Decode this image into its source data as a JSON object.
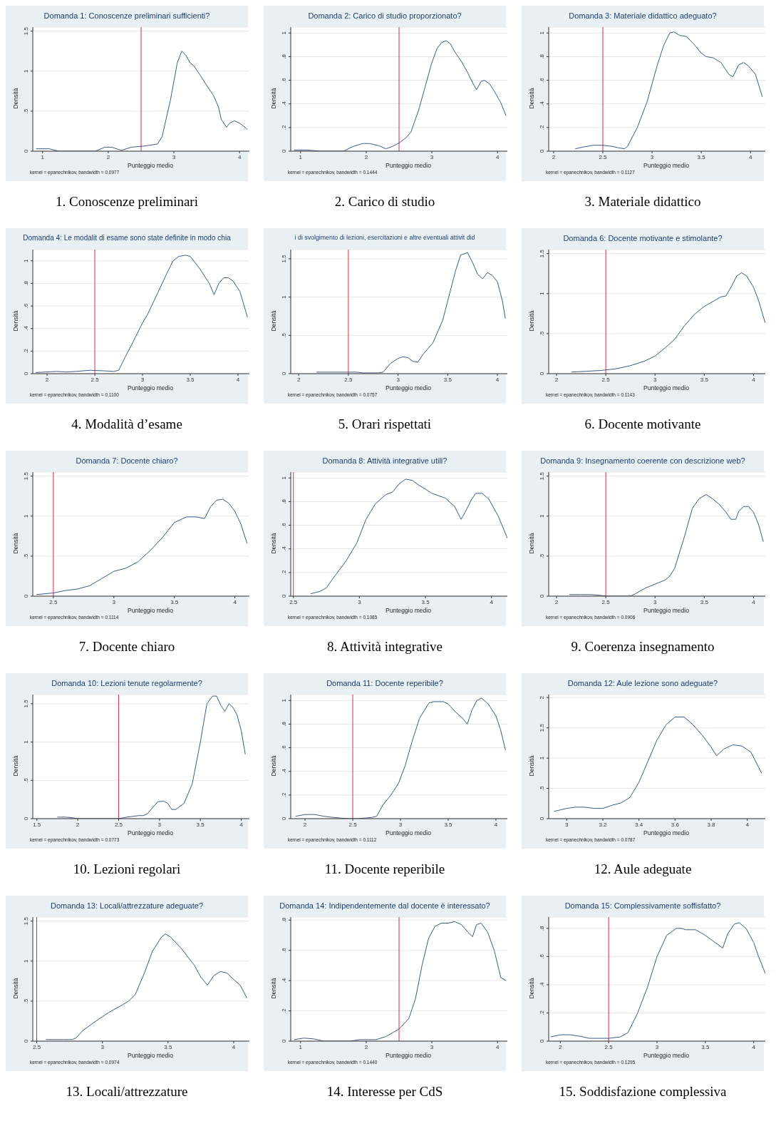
{
  "chart_data": [
    {
      "type": "line",
      "title": "Domanda 1: Conoscenze preliminari sufficienti?",
      "xlabel": "Punteggio medio",
      "ylabel": "Densità",
      "x": [
        0.9,
        1.1,
        1.25,
        1.8,
        1.95,
        2.05,
        2.2,
        2.35,
        2.5,
        2.6,
        2.75,
        2.82,
        2.95,
        3.05,
        3.12,
        3.18,
        3.25,
        3.3,
        3.4,
        3.5,
        3.6,
        3.68,
        3.72,
        3.8,
        3.85,
        3.92,
        4.0,
        4.05,
        4.12
      ],
      "series": [
        {
          "color": "#3b5b82",
          "values": [
            0.03,
            0.03,
            0,
            0,
            0.05,
            0.05,
            0.01,
            0.05,
            0.06,
            0.07,
            0.09,
            0.18,
            0.65,
            1.1,
            1.25,
            1.2,
            1.1,
            1.07,
            0.95,
            0.82,
            0.7,
            0.55,
            0.4,
            0.3,
            0.35,
            0.38,
            0.35,
            0.32,
            0.27
          ]
        }
      ],
      "xlim": [
        0.85,
        4.15
      ],
      "xticks": [
        1,
        2,
        3,
        4
      ],
      "ylim": [
        0,
        1.55
      ],
      "yticks": [
        0,
        {
          "value": 0.5,
          "label": ".5"
        },
        1,
        1.5
      ],
      "grid": "y",
      "ref_lines": [
        {
          "axis": "x",
          "value": 2.5,
          "color": "#e0264e"
        }
      ],
      "annotations": [
        "kernel = epanechnikov, bandwidth = 0.0977",
        "1. Conoscenze preliminari"
      ]
    },
    {
      "type": "line",
      "title": "Domanda 2: Carico di studio proporzionato?",
      "xlabel": "Punteggio medio",
      "ylabel": "Densità",
      "x": [
        0.9,
        1.1,
        1.3,
        1.65,
        1.8,
        1.95,
        2.05,
        2.2,
        2.3,
        2.4,
        2.5,
        2.6,
        2.68,
        2.8,
        2.9,
        3.0,
        3.08,
        3.15,
        3.22,
        3.28,
        3.35,
        3.45,
        3.55,
        3.62,
        3.68,
        3.75,
        3.8,
        3.88,
        3.95,
        4.05,
        4.13
      ],
      "series": [
        {
          "color": "#3b5b82",
          "values": [
            0.01,
            0.01,
            0,
            0,
            0.04,
            0.065,
            0.065,
            0.045,
            0.02,
            0.04,
            0.07,
            0.11,
            0.16,
            0.35,
            0.55,
            0.75,
            0.87,
            0.92,
            0.935,
            0.91,
            0.84,
            0.76,
            0.66,
            0.58,
            0.52,
            0.59,
            0.6,
            0.57,
            0.51,
            0.41,
            0.3
          ]
        }
      ],
      "xlim": [
        0.85,
        4.15
      ],
      "xticks": [
        1,
        2,
        3,
        4
      ],
      "ylim": [
        0,
        1.05
      ],
      "yticks": [
        0,
        {
          "value": 0.2,
          "label": ".2"
        },
        {
          "value": 0.4,
          "label": ".4"
        },
        {
          "value": 0.6,
          "label": ".6"
        },
        {
          "value": 0.8,
          "label": ".8"
        },
        1
      ],
      "grid": "y",
      "ref_lines": [
        {
          "axis": "x",
          "value": 2.5,
          "color": "#e0264e"
        }
      ],
      "annotations": [
        "kernel = epanechnikov, bandwidth = 0.1444",
        "2. Carico di studio"
      ]
    },
    {
      "type": "line",
      "title": "Domanda 3: Materiale didattico adeguato?",
      "xlabel": "Punteggio medio",
      "ylabel": "Densità",
      "x": [
        2.22,
        2.3,
        2.4,
        2.5,
        2.6,
        2.65,
        2.72,
        2.75,
        2.85,
        2.95,
        3.05,
        3.12,
        3.18,
        3.22,
        3.28,
        3.35,
        3.42,
        3.5,
        3.55,
        3.62,
        3.7,
        3.78,
        3.82,
        3.88,
        3.93,
        3.98,
        4.05,
        4.12
      ],
      "series": [
        {
          "color": "#3b5b82",
          "values": [
            0.02,
            0.035,
            0.05,
            0.05,
            0.04,
            0.03,
            0.02,
            0.04,
            0.2,
            0.42,
            0.72,
            0.9,
            1.0,
            1.01,
            0.98,
            0.97,
            0.91,
            0.83,
            0.8,
            0.79,
            0.75,
            0.65,
            0.63,
            0.73,
            0.75,
            0.72,
            0.65,
            0.46
          ]
        }
      ],
      "xlim": [
        1.95,
        4.15
      ],
      "xticks": [
        2,
        2.5,
        3,
        3.5,
        4
      ],
      "ylim": [
        0,
        1.05
      ],
      "yticks": [
        0,
        {
          "value": 0.2,
          "label": ".2"
        },
        {
          "value": 0.4,
          "label": ".4"
        },
        {
          "value": 0.6,
          "label": ".6"
        },
        {
          "value": 0.8,
          "label": ".8"
        },
        1
      ],
      "grid": "y",
      "ref_lines": [
        {
          "axis": "x",
          "value": 2.5,
          "color": "#e0264e"
        }
      ],
      "annotations": [
        "kernel = epanechnikov, bandwidth = 0.1127",
        "3. Materiale didattico"
      ]
    },
    {
      "type": "line",
      "title": "Domanda 4: Le modalit di esame sono state definite in modo chia",
      "xlabel": "Punteggio medio",
      "ylabel": "Densità",
      "x": [
        1.88,
        2.0,
        2.1,
        2.2,
        2.3,
        2.45,
        2.6,
        2.7,
        2.75,
        2.82,
        2.9,
        3.0,
        3.05,
        3.15,
        3.25,
        3.32,
        3.38,
        3.45,
        3.5,
        3.6,
        3.7,
        3.75,
        3.8,
        3.85,
        3.9,
        3.95,
        4.02,
        4.1
      ],
      "series": [
        {
          "color": "#3b5b82",
          "values": [
            0.01,
            0.015,
            0.02,
            0.015,
            0.02,
            0.03,
            0.025,
            0.02,
            0.03,
            0.15,
            0.28,
            0.45,
            0.52,
            0.7,
            0.88,
            1.0,
            1.04,
            1.05,
            1.04,
            0.93,
            0.8,
            0.7,
            0.8,
            0.85,
            0.85,
            0.82,
            0.73,
            0.5
          ]
        }
      ],
      "xlim": [
        1.85,
        4.12
      ],
      "xticks": [
        2,
        2.5,
        3,
        3.5,
        4
      ],
      "ylim": [
        0,
        1.1
      ],
      "yticks": [
        0,
        {
          "value": 0.2,
          "label": ".2"
        },
        {
          "value": 0.4,
          "label": ".4"
        },
        {
          "value": 0.6,
          "label": ".6"
        },
        {
          "value": 0.8,
          "label": ".8"
        },
        1
      ],
      "grid": "y",
      "ref_lines": [
        {
          "axis": "x",
          "value": 2.5,
          "color": "#e0264e"
        }
      ],
      "annotations": [
        "kernel = epanechnikov, bandwidth = 0.1100",
        "4. Modalità d’esame"
      ]
    },
    {
      "type": "line",
      "title": "i di svolgimento di lezioni, esercitazioni e altre eventuali attivit did",
      "xlabel": "Punteggio medio",
      "ylabel": "Densità",
      "x": [
        2.18,
        2.5,
        2.58,
        2.65,
        2.8,
        2.85,
        2.92,
        3.0,
        3.05,
        3.1,
        3.15,
        3.2,
        3.25,
        3.35,
        3.45,
        3.52,
        3.58,
        3.63,
        3.7,
        3.75,
        3.8,
        3.85,
        3.9,
        3.95,
        4.0,
        4.05,
        4.08
      ],
      "series": [
        {
          "color": "#3b5b82",
          "values": [
            0.02,
            0.02,
            0.02,
            0.01,
            0.01,
            0.02,
            0.13,
            0.2,
            0.22,
            0.21,
            0.16,
            0.15,
            0.25,
            0.4,
            0.7,
            1.05,
            1.35,
            1.55,
            1.58,
            1.45,
            1.3,
            1.24,
            1.32,
            1.28,
            1.2,
            0.95,
            0.72
          ]
        }
      ],
      "xlim": [
        1.92,
        4.1
      ],
      "xticks": [
        2,
        2.5,
        3,
        3.5,
        4
      ],
      "ylim": [
        0,
        1.62
      ],
      "yticks": [
        0,
        {
          "value": 0.5,
          "label": ".5"
        },
        1,
        1.5
      ],
      "grid": "y",
      "ref_lines": [
        {
          "axis": "x",
          "value": 2.5,
          "color": "#e0264e"
        }
      ],
      "annotations": [
        "kernel = epanechnikov, bandwidth = 0.0757",
        "5. Orari rispettati"
      ]
    },
    {
      "type": "line",
      "title": "Domanda 6: Docente motivante e stimolante?",
      "xlabel": "Punteggio medio",
      "ylabel": "Densità",
      "x": [
        2.15,
        2.3,
        2.45,
        2.6,
        2.75,
        2.9,
        3.0,
        3.1,
        3.2,
        3.3,
        3.4,
        3.5,
        3.6,
        3.67,
        3.72,
        3.78,
        3.83,
        3.88,
        3.93,
        4.0,
        4.05,
        4.12
      ],
      "series": [
        {
          "color": "#3b5b82",
          "values": [
            0.02,
            0.03,
            0.04,
            0.06,
            0.1,
            0.16,
            0.22,
            0.32,
            0.43,
            0.6,
            0.74,
            0.84,
            0.91,
            0.96,
            0.97,
            1.1,
            1.22,
            1.26,
            1.22,
            1.08,
            0.92,
            0.63
          ]
        }
      ],
      "xlim": [
        1.92,
        4.12
      ],
      "xticks": [
        2,
        2.5,
        3,
        3.5,
        4
      ],
      "ylim": [
        0,
        1.55
      ],
      "yticks": [
        0,
        {
          "value": 0.5,
          "label": ".5"
        },
        1,
        1.5
      ],
      "grid": "y",
      "ref_lines": [
        {
          "axis": "x",
          "value": 2.5,
          "color": "#e0264e"
        }
      ],
      "annotations": [
        "kernel = epanechnikov, bandwidth = 0.1143",
        "6. Docente motivante"
      ]
    },
    {
      "type": "line",
      "title": "Domanda 7: Docente chiaro?",
      "xlabel": "Punteggio medio",
      "ylabel": "Densità",
      "x": [
        2.36,
        2.5,
        2.6,
        2.7,
        2.8,
        2.9,
        3.0,
        3.1,
        3.2,
        3.3,
        3.4,
        3.5,
        3.6,
        3.68,
        3.75,
        3.8,
        3.85,
        3.9,
        3.95,
        4.0,
        4.05,
        4.1
      ],
      "series": [
        {
          "color": "#3b5b82",
          "values": [
            0.02,
            0.04,
            0.07,
            0.09,
            0.13,
            0.22,
            0.31,
            0.35,
            0.43,
            0.57,
            0.73,
            0.92,
            0.99,
            0.99,
            0.97,
            1.12,
            1.2,
            1.21,
            1.16,
            1.06,
            0.9,
            0.66
          ]
        }
      ],
      "xlim": [
        2.33,
        4.12
      ],
      "xticks": [
        2.5,
        3,
        3.5,
        4
      ],
      "ylim": [
        0,
        1.55
      ],
      "yticks": [
        0,
        {
          "value": 0.5,
          "label": ".5"
        },
        1,
        1.5
      ],
      "grid": "y",
      "ref_lines": [
        {
          "axis": "x",
          "value": 2.5,
          "color": "#e0264e"
        }
      ],
      "annotations": [
        "kernel = epanechnikov, bandwidth = 0.1114",
        "7. Docente chiaro"
      ]
    },
    {
      "type": "line",
      "title": "Domanda 8: Attività integrative utili?",
      "xlabel": "Punteggio medio",
      "ylabel": "Densità",
      "x": [
        2.63,
        2.7,
        2.75,
        2.8,
        2.9,
        2.98,
        3.05,
        3.12,
        3.2,
        3.25,
        3.3,
        3.35,
        3.4,
        3.45,
        3.55,
        3.65,
        3.72,
        3.77,
        3.8,
        3.85,
        3.88,
        3.93,
        3.98,
        4.05,
        4.12
      ],
      "series": [
        {
          "color": "#3b5b82",
          "values": [
            0.02,
            0.04,
            0.07,
            0.15,
            0.3,
            0.45,
            0.65,
            0.78,
            0.86,
            0.88,
            0.95,
            0.99,
            0.98,
            0.94,
            0.87,
            0.83,
            0.76,
            0.65,
            0.71,
            0.82,
            0.87,
            0.87,
            0.82,
            0.68,
            0.49
          ]
        }
      ],
      "xlim": [
        2.48,
        4.12
      ],
      "xticks": [
        2.5,
        3,
        3.5,
        4
      ],
      "ylim": [
        0,
        1.05
      ],
      "yticks": [
        0,
        {
          "value": 0.2,
          "label": ".2"
        },
        {
          "value": 0.4,
          "label": ".4"
        },
        {
          "value": 0.6,
          "label": ".6"
        },
        {
          "value": 0.8,
          "label": ".8"
        },
        1
      ],
      "grid": "y",
      "ref_lines": [
        {
          "axis": "x",
          "value": 2.5,
          "color": "#e0264e"
        }
      ],
      "annotations": [
        "kernel = epanechnikov, bandwidth = 0.1085",
        "8. Attività integrative"
      ]
    },
    {
      "type": "line",
      "title": "Domanda 9: Insegnamento coerente con descrizione web?",
      "xlabel": "Punteggio medio",
      "ylabel": "Densità",
      "x": [
        2.13,
        2.25,
        2.35,
        2.45,
        2.5,
        2.75,
        2.8,
        2.9,
        3.0,
        3.1,
        3.15,
        3.2,
        3.3,
        3.38,
        3.45,
        3.52,
        3.58,
        3.65,
        3.72,
        3.77,
        3.82,
        3.85,
        3.9,
        3.95,
        4.0,
        4.05,
        4.1
      ],
      "series": [
        {
          "color": "#3b5b82",
          "values": [
            0.02,
            0.02,
            0.02,
            0.01,
            0,
            0,
            0.03,
            0.1,
            0.15,
            0.2,
            0.25,
            0.35,
            0.75,
            1.1,
            1.22,
            1.27,
            1.22,
            1.15,
            1.05,
            0.96,
            0.96,
            1.06,
            1.12,
            1.12,
            1.05,
            0.9,
            0.68
          ]
        }
      ],
      "xlim": [
        1.92,
        4.12
      ],
      "xticks": [
        2,
        2.5,
        3,
        3.5,
        4
      ],
      "ylim": [
        0,
        1.55
      ],
      "yticks": [
        0,
        {
          "value": 0.5,
          "label": ".5"
        },
        1,
        1.5
      ],
      "grid": "y",
      "ref_lines": [
        {
          "axis": "x",
          "value": 2.5,
          "color": "#e0264e"
        }
      ],
      "annotations": [
        "kernel = epanechnikov, bandwidth = 0.0906",
        "9. Coerenza insegnamento"
      ]
    },
    {
      "type": "line",
      "title": "Domanda 10: Lezioni tenute regolarmente?",
      "xlabel": "Punteggio medio",
      "ylabel": "Densità",
      "x": [
        1.75,
        1.85,
        1.95,
        2.0,
        2.5,
        2.6,
        2.75,
        2.8,
        2.85,
        2.92,
        2.98,
        3.05,
        3.1,
        3.15,
        3.2,
        3.3,
        3.4,
        3.5,
        3.58,
        3.65,
        3.7,
        3.75,
        3.8,
        3.85,
        3.9,
        3.95,
        4.0,
        4.05
      ],
      "series": [
        {
          "color": "#3b5b82",
          "values": [
            0.02,
            0.02,
            0.01,
            0,
            0,
            0.02,
            0.04,
            0.04,
            0.06,
            0.15,
            0.22,
            0.23,
            0.2,
            0.12,
            0.12,
            0.2,
            0.45,
            1.0,
            1.5,
            1.6,
            1.6,
            1.48,
            1.4,
            1.5,
            1.45,
            1.35,
            1.15,
            0.84
          ]
        }
      ],
      "xlim": [
        1.45,
        4.1
      ],
      "xticks": [
        1.5,
        2,
        2.5,
        3,
        3.5,
        4
      ],
      "ylim": [
        0,
        1.62
      ],
      "yticks": [
        0,
        {
          "value": 0.5,
          "label": ".5"
        },
        1,
        1.5
      ],
      "grid": "y",
      "ref_lines": [
        {
          "axis": "x",
          "value": 2.5,
          "color": "#e0264e"
        }
      ],
      "annotations": [
        "kernel = epanechnikov, bandwidth = 0.0773",
        "10. Lezioni regolari"
      ]
    },
    {
      "type": "line",
      "title": "Domanda 11: Docente reperibile?",
      "xlabel": "Punteggio medio",
      "ylabel": "Densità",
      "x": [
        1.9,
        2.0,
        2.1,
        2.2,
        2.3,
        2.45,
        2.55,
        2.7,
        2.75,
        2.82,
        2.9,
        2.98,
        3.05,
        3.12,
        3.2,
        3.3,
        3.35,
        3.45,
        3.5,
        3.58,
        3.65,
        3.7,
        3.75,
        3.8,
        3.85,
        3.92,
        4.0,
        4.05,
        4.1
      ],
      "series": [
        {
          "color": "#3b5b82",
          "values": [
            0.02,
            0.035,
            0.035,
            0.02,
            0.01,
            0,
            0,
            0.01,
            0.02,
            0.12,
            0.2,
            0.3,
            0.45,
            0.65,
            0.85,
            0.98,
            0.99,
            0.99,
            0.97,
            0.9,
            0.85,
            0.8,
            0.92,
            1.0,
            1.02,
            0.97,
            0.87,
            0.75,
            0.58
          ]
        }
      ],
      "xlim": [
        1.85,
        4.12
      ],
      "xticks": [
        2,
        2.5,
        3,
        3.5,
        4
      ],
      "ylim": [
        0,
        1.05
      ],
      "yticks": [
        0,
        {
          "value": 0.2,
          "label": ".2"
        },
        {
          "value": 0.4,
          "label": ".4"
        },
        {
          "value": 0.6,
          "label": ".6"
        },
        {
          "value": 0.8,
          "label": ".8"
        },
        1
      ],
      "grid": "y",
      "ref_lines": [
        {
          "axis": "x",
          "value": 2.5,
          "color": "#e0264e"
        }
      ],
      "annotations": [
        "kernel = epanechnikov, bandwidth = 0.1112",
        "11. Docente reperibile"
      ]
    },
    {
      "type": "line",
      "title": "Domanda 12: Aule lezione sono adeguate?",
      "xlabel": "Punteggio medio",
      "ylabel": "Densità",
      "x": [
        2.93,
        3.0,
        3.05,
        3.1,
        3.15,
        3.2,
        3.25,
        3.3,
        3.35,
        3.4,
        3.45,
        3.5,
        3.55,
        3.6,
        3.65,
        3.7,
        3.75,
        3.8,
        3.83,
        3.87,
        3.92,
        3.97,
        4.02,
        4.08
      ],
      "series": [
        {
          "color": "#3b5b82",
          "values": [
            0.12,
            0.17,
            0.19,
            0.19,
            0.17,
            0.17,
            0.22,
            0.26,
            0.35,
            0.6,
            0.95,
            1.3,
            1.55,
            1.68,
            1.68,
            1.55,
            1.38,
            1.18,
            1.04,
            1.15,
            1.22,
            1.2,
            1.1,
            0.75
          ]
        }
      ],
      "xlim": [
        2.9,
        4.1
      ],
      "xticks": [
        3,
        3.2,
        3.4,
        3.6,
        3.8,
        4
      ],
      "ylim": [
        0,
        2.05
      ],
      "yticks": [
        0,
        {
          "value": 0.5,
          "label": ".5"
        },
        1,
        1.5,
        2
      ],
      "grid": "y",
      "annotations": [
        "kernel = epanechnikov, bandwidth = 0.0787",
        "12. Aule adeguate"
      ]
    },
    {
      "type": "line",
      "title": "Domanda 13: Locali/attrezzature adeguate?",
      "xlabel": "Punteggio medio",
      "ylabel": "Densità",
      "x": [
        2.57,
        2.7,
        2.77,
        2.8,
        2.85,
        2.95,
        3.05,
        3.15,
        3.2,
        3.25,
        3.32,
        3.38,
        3.45,
        3.48,
        3.52,
        3.6,
        3.7,
        3.75,
        3.8,
        3.85,
        3.9,
        3.95,
        4.0,
        4.05,
        4.1
      ],
      "series": [
        {
          "color": "#3b5b82",
          "values": [
            0.02,
            0.02,
            0.02,
            0.04,
            0.13,
            0.25,
            0.36,
            0.45,
            0.5,
            0.58,
            0.85,
            1.12,
            1.3,
            1.34,
            1.3,
            1.16,
            0.95,
            0.8,
            0.7,
            0.82,
            0.87,
            0.85,
            0.77,
            0.7,
            0.54
          ]
        }
      ],
      "xlim": [
        2.47,
        4.12
      ],
      "xticks": [
        2.5,
        3,
        3.5,
        4
      ],
      "ylim": [
        0,
        1.55
      ],
      "yticks": [
        0,
        {
          "value": 0.5,
          "label": ".5"
        },
        1,
        1.5
      ],
      "grid": "y",
      "ref_lines": [
        {
          "axis": "x",
          "value": 2.5,
          "color": "#e0264e"
        }
      ],
      "annotations": [
        "kernel = epanechnikov, bandwidth = 0.0974",
        "13. Locali/attrezzature"
      ]
    },
    {
      "type": "line",
      "title": "Domanda 14: Indipendentemente dal docente è interessato?",
      "xlabel": "Punteggio medio",
      "ylabel": "Densità",
      "x": [
        0.9,
        1.05,
        1.2,
        1.35,
        1.75,
        1.9,
        2.15,
        2.3,
        2.5,
        2.65,
        2.75,
        2.85,
        2.95,
        3.05,
        3.15,
        3.25,
        3.35,
        3.45,
        3.55,
        3.62,
        3.68,
        3.75,
        3.85,
        3.95,
        4.05,
        4.13
      ],
      "series": [
        {
          "color": "#3b5b82",
          "values": [
            0.01,
            0.02,
            0.015,
            0,
            0,
            0.01,
            0.01,
            0.03,
            0.08,
            0.15,
            0.28,
            0.5,
            0.68,
            0.76,
            0.78,
            0.78,
            0.79,
            0.77,
            0.72,
            0.69,
            0.77,
            0.78,
            0.72,
            0.6,
            0.42,
            0.4
          ]
        }
      ],
      "xlim": [
        0.85,
        4.15
      ],
      "xticks": [
        1,
        2,
        3,
        4
      ],
      "ylim": [
        0,
        0.82
      ],
      "yticks": [
        0,
        {
          "value": 0.2,
          "label": ".2"
        },
        {
          "value": 0.4,
          "label": ".4"
        },
        {
          "value": 0.6,
          "label": ".6"
        },
        {
          "value": 0.8,
          "label": ".8"
        }
      ],
      "grid": "y",
      "ref_lines": [
        {
          "axis": "x",
          "value": 2.5,
          "color": "#e0264e"
        }
      ],
      "annotations": [
        "kernel = epanechnikov, bandwidth = 0.1440",
        "14. Interesse per CdS"
      ]
    },
    {
      "type": "line",
      "title": "Domanda 15: Complessivamente soffisfatto?",
      "xlabel": "Punteggio medio",
      "ylabel": "Densità",
      "x": [
        1.9,
        2.0,
        2.1,
        2.2,
        2.3,
        2.5,
        2.62,
        2.7,
        2.8,
        2.9,
        3.0,
        3.1,
        3.2,
        3.25,
        3.3,
        3.4,
        3.5,
        3.6,
        3.68,
        3.73,
        3.8,
        3.85,
        3.92,
        4.0,
        4.05,
        4.12
      ],
      "series": [
        {
          "color": "#3b5b82",
          "values": [
            0.03,
            0.045,
            0.045,
            0.035,
            0.02,
            0.02,
            0.03,
            0.06,
            0.2,
            0.38,
            0.6,
            0.75,
            0.8,
            0.8,
            0.79,
            0.79,
            0.75,
            0.7,
            0.66,
            0.76,
            0.83,
            0.84,
            0.8,
            0.7,
            0.6,
            0.48
          ]
        }
      ],
      "xlim": [
        1.88,
        4.12
      ],
      "xticks": [
        2,
        2.5,
        3,
        3.5,
        4
      ],
      "ylim": [
        0,
        0.88
      ],
      "yticks": [
        0,
        {
          "value": 0.2,
          "label": ".2"
        },
        {
          "value": 0.4,
          "label": ".4"
        },
        {
          "value": 0.6,
          "label": ".6"
        },
        {
          "value": 0.8,
          "label": ".8"
        }
      ],
      "grid": "y",
      "ref_lines": [
        {
          "axis": "x",
          "value": 2.5,
          "color": "#e0264e"
        }
      ],
      "annotations": [
        "kernel = epanechnikov, bandwidth = 0.1295",
        "15. Soddisfazione complessiva"
      ]
    }
  ]
}
